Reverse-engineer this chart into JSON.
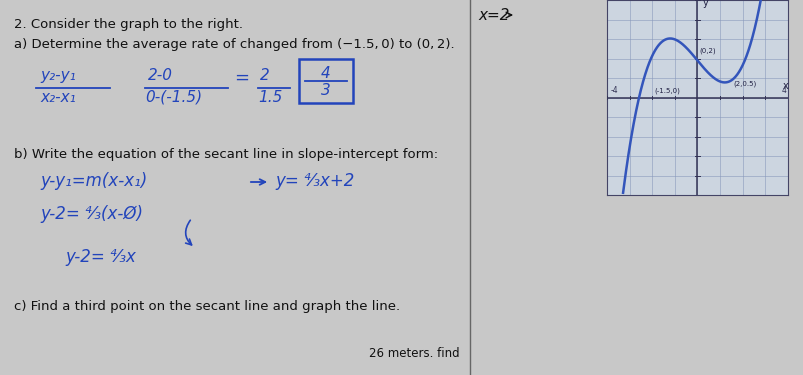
{
  "bg_color": "#c8c8c8",
  "paper_color": "#e8e8e8",
  "title1": "2. Consider the graph to the right.",
  "title2": "a) Determine the average rate of changed from (−1.5, 0) to (0, 2).",
  "part_b": "b) Write the equation of the secant line in slope-intercept form:",
  "part_c": "c) Find a third point on the secant line and graph the line.",
  "bottom": "26 meters. find",
  "xeq2": "x=2",
  "blue": "#2244bb",
  "black": "#111111",
  "curve_color": "#3355bb",
  "grid_color": "#9999bb",
  "graph_bg": "#d0d8e8",
  "divider_color": "#666666",
  "fs_text": 9.5,
  "fs_hand": 11
}
